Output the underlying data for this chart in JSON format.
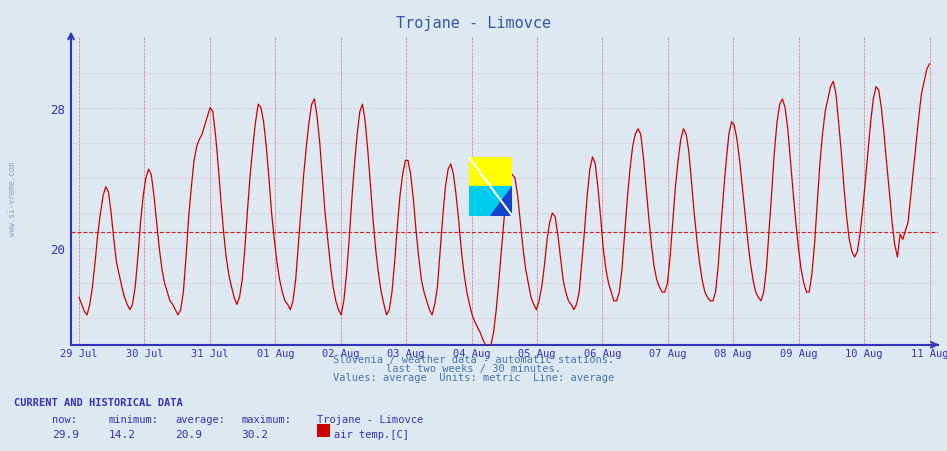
{
  "title": "Trojane - Limovce",
  "title_color": "#3355aa",
  "bg_color": "#dde8f0",
  "plot_bg_color": "#dde8f0",
  "line_color": "#cc0000",
  "axis_color": "#3333bb",
  "grid_v_color": "#cc0000",
  "grid_h_color": "#cc8888",
  "avg_value": 20.9,
  "ylim_min": 14.5,
  "ylim_max": 32.0,
  "ytick_values": [
    20,
    28
  ],
  "x_labels": [
    "29 Jul",
    "30 Jul",
    "31 Jul",
    "01 Aug",
    "02 Aug",
    "03 Aug",
    "04 Aug",
    "05 Aug",
    "06 Aug",
    "07 Aug",
    "08 Aug",
    "09 Aug",
    "10 Aug",
    "11 Aug"
  ],
  "footer_line1": "Slovenia / weather data - automatic stations.",
  "footer_line2": "last two weeks / 30 minutes.",
  "footer_line3": "Values: average  Units: metric  Line: average",
  "footer_color": "#4477aa",
  "current_label": "CURRENT AND HISTORICAL DATA",
  "col_headers": [
    "now:",
    "minimum:",
    "average:",
    "maximum:"
  ],
  "col_values": [
    "29.9",
    "14.2",
    "20.9",
    "30.2"
  ],
  "station_name": "Trojane - Limovce",
  "series_label": "air temp.[C]",
  "sidebar_text": "www.si-vreme.com",
  "data_y": [
    17.2,
    16.8,
    16.4,
    16.2,
    16.8,
    17.8,
    19.2,
    20.8,
    22.0,
    23.0,
    23.5,
    23.2,
    22.0,
    20.5,
    19.2,
    18.5,
    17.8,
    17.2,
    16.8,
    16.5,
    16.8,
    17.8,
    19.5,
    21.5,
    23.0,
    24.0,
    24.5,
    24.2,
    23.0,
    21.5,
    20.0,
    18.8,
    18.0,
    17.5,
    17.0,
    16.8,
    16.5,
    16.2,
    16.5,
    17.5,
    19.5,
    21.8,
    23.5,
    25.0,
    25.8,
    26.2,
    26.5,
    27.0,
    27.5,
    28.0,
    27.8,
    26.5,
    24.8,
    22.8,
    21.0,
    19.5,
    18.5,
    17.8,
    17.2,
    16.8,
    17.2,
    18.2,
    20.0,
    22.2,
    24.2,
    25.8,
    27.2,
    28.2,
    28.0,
    27.2,
    25.8,
    24.0,
    22.0,
    20.5,
    19.2,
    18.2,
    17.5,
    17.0,
    16.8,
    16.5,
    17.0,
    18.2,
    20.2,
    22.2,
    24.2,
    25.8,
    27.2,
    28.2,
    28.5,
    27.5,
    26.0,
    24.0,
    22.0,
    20.5,
    19.0,
    17.8,
    17.0,
    16.5,
    16.2,
    17.0,
    18.5,
    20.5,
    22.8,
    24.8,
    26.5,
    27.8,
    28.2,
    27.2,
    25.5,
    23.5,
    21.5,
    19.8,
    18.5,
    17.5,
    16.8,
    16.2,
    16.5,
    17.5,
    19.2,
    21.2,
    23.0,
    24.2,
    25.0,
    25.0,
    24.2,
    22.8,
    21.0,
    19.5,
    18.2,
    17.5,
    17.0,
    16.5,
    16.2,
    16.8,
    17.8,
    19.8,
    21.8,
    23.5,
    24.5,
    24.8,
    24.2,
    23.0,
    21.5,
    19.8,
    18.5,
    17.5,
    16.8,
    16.2,
    15.8,
    15.5,
    15.2,
    14.8,
    14.5,
    14.2,
    14.5,
    15.2,
    16.5,
    18.2,
    20.0,
    21.8,
    23.2,
    24.0,
    24.2,
    24.0,
    23.0,
    21.5,
    20.0,
    18.8,
    18.0,
    17.2,
    16.8,
    16.5,
    17.0,
    17.8,
    19.0,
    20.5,
    21.5,
    22.0,
    21.8,
    20.8,
    19.5,
    18.2,
    17.5,
    17.0,
    16.8,
    16.5,
    16.8,
    17.5,
    19.2,
    21.0,
    23.0,
    24.5,
    25.2,
    24.8,
    23.5,
    21.8,
    20.0,
    18.8,
    18.0,
    17.5,
    17.0,
    17.0,
    17.5,
    18.8,
    20.8,
    22.8,
    24.5,
    25.8,
    26.5,
    26.8,
    26.5,
    25.2,
    23.5,
    21.8,
    20.2,
    19.0,
    18.2,
    17.8,
    17.5,
    17.5,
    18.0,
    19.5,
    21.5,
    23.5,
    25.0,
    26.2,
    26.8,
    26.5,
    25.5,
    23.8,
    22.0,
    20.5,
    19.2,
    18.2,
    17.5,
    17.2,
    17.0,
    17.0,
    17.5,
    19.0,
    21.2,
    23.2,
    25.0,
    26.5,
    27.2,
    27.0,
    26.2,
    25.0,
    23.5,
    22.0,
    20.5,
    19.2,
    18.2,
    17.5,
    17.2,
    17.0,
    17.5,
    18.8,
    21.0,
    23.2,
    25.5,
    27.2,
    28.2,
    28.5,
    28.0,
    26.8,
    25.0,
    23.2,
    21.5,
    20.0,
    18.8,
    18.0,
    17.5,
    17.5,
    18.5,
    20.2,
    22.5,
    24.8,
    26.5,
    27.8,
    28.5,
    29.2,
    29.5,
    28.8,
    27.2,
    25.5,
    23.5,
    21.8,
    20.5,
    19.8,
    19.5,
    19.8,
    20.8,
    22.2,
    23.8,
    25.5,
    27.2,
    28.5,
    29.2,
    29.0,
    28.0,
    26.5,
    24.8,
    23.2,
    21.5,
    20.2,
    19.5,
    20.8,
    20.5,
    21.0,
    21.5,
    23.0,
    24.5,
    26.0,
    27.5,
    28.8,
    29.5,
    30.2,
    30.5
  ]
}
